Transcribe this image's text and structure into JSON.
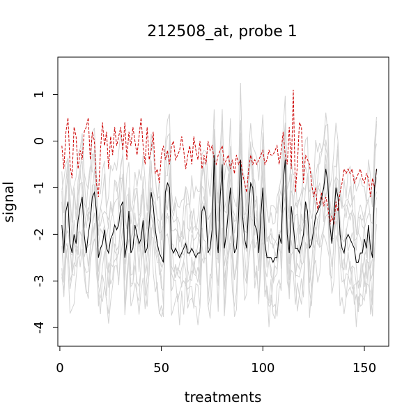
{
  "chart_data": {
    "type": "line",
    "title": "212508_at, probe 1",
    "xlabel": "treatments",
    "ylabel": "signal",
    "xlim": [
      -1,
      162
    ],
    "ylim": [
      -4.4,
      1.8
    ],
    "xticks": [
      0,
      50,
      100,
      150
    ],
    "yticks": [
      -4,
      -3,
      -2,
      -1,
      0,
      1
    ],
    "grid": false,
    "n_points": 156,
    "colors": {
      "background": "#d3d3d3",
      "highlight": "#000000",
      "reference": "#cc0000"
    },
    "series": [
      {
        "role": "highlight",
        "color": "#000000",
        "dash": "solid",
        "values": [
          -1.8,
          -2.4,
          -1.5,
          -1.3,
          -2.2,
          -2.4,
          -2.0,
          -2.2,
          -1.7,
          -1.4,
          -1.2,
          -2.0,
          -2.4,
          -2.0,
          -1.7,
          -1.2,
          -1.1,
          -1.5,
          -2.5,
          -2.3,
          -2.2,
          -1.9,
          -2.3,
          -2.4,
          -2.1,
          -2.0,
          -1.8,
          -1.9,
          -1.8,
          -1.4,
          -1.3,
          -2.5,
          -2.2,
          -1.5,
          -2.4,
          -2.3,
          -1.8,
          -2.0,
          -2.2,
          -2.1,
          -1.7,
          -2.4,
          -2.3,
          -1.8,
          -1.1,
          -1.4,
          -1.9,
          -2.2,
          -2.4,
          -2.5,
          -2.6,
          -1.1,
          -0.9,
          -1.0,
          -2.3,
          -2.4,
          -2.3,
          -2.4,
          -2.5,
          -2.4,
          -2.3,
          -2.2,
          -2.4,
          -2.4,
          -2.3,
          -2.4,
          -2.5,
          -2.4,
          -2.4,
          -1.5,
          -1.4,
          -1.6,
          -2.4,
          -2.3,
          -1.9,
          -0.3,
          -2.0,
          -2.4,
          -1.2,
          -0.5,
          -2.3,
          -2.0,
          -1.5,
          -1.0,
          -1.9,
          -2.4,
          -2.3,
          -1.6,
          -0.4,
          -1.6,
          -2.1,
          -2.3,
          -1.4,
          -0.9,
          -1.0,
          -1.8,
          -1.9,
          -2.4,
          -1.6,
          -1.0,
          -2.2,
          -2.5,
          -2.5,
          -2.5,
          -2.6,
          -2.5,
          -2.5,
          -2.0,
          -2.2,
          -0.9,
          -0.4,
          -2.0,
          -2.4,
          -1.4,
          -1.8,
          -2.3,
          -2.3,
          -2.4,
          -2.2,
          -2.0,
          -1.3,
          -1.5,
          -2.3,
          -2.2,
          -1.9,
          -1.6,
          -1.5,
          -1.4,
          -1.2,
          -1.0,
          -0.6,
          -0.9,
          -1.8,
          -2.2,
          -1.6,
          -1.0,
          -1.2,
          -2.0,
          -2.3,
          -2.4,
          -2.1,
          -2.0,
          -2.1,
          -2.2,
          -2.3,
          -2.6,
          -2.6,
          -2.4,
          -2.4,
          -2.1,
          -2.3,
          -1.8,
          -2.3,
          -2.5,
          -1.0,
          -0.6
        ]
      },
      {
        "role": "reference",
        "color": "#cc0000",
        "dash": "dashed",
        "values": [
          -0.1,
          -0.6,
          0.2,
          0.5,
          -0.5,
          -0.8,
          0.3,
          0.1,
          -0.6,
          -0.2,
          -0.4,
          0.2,
          0.3,
          0.5,
          -0.4,
          0.2,
          0.0,
          -0.9,
          -1.2,
          -0.2,
          0.4,
          -0.1,
          0.2,
          -0.6,
          0.1,
          -0.3,
          0.3,
          -0.1,
          0.1,
          0.3,
          -0.2,
          0.4,
          -0.4,
          0.2,
          -0.1,
          0.3,
          0.0,
          -0.3,
          0.1,
          0.5,
          -0.1,
          -0.5,
          0.3,
          -0.4,
          -0.2,
          0.2,
          -0.7,
          -0.6,
          -0.9,
          -0.3,
          -0.1,
          -0.4,
          -0.2,
          -0.5,
          -0.1,
          0.0,
          -0.4,
          -0.3,
          -0.2,
          0.1,
          -0.2,
          -0.6,
          -0.3,
          -0.1,
          -0.5,
          0.1,
          -0.2,
          -0.4,
          0.0,
          -0.6,
          -0.3,
          -0.5,
          0.0,
          -0.2,
          -0.1,
          -0.4,
          -0.5,
          -0.3,
          -0.2,
          -0.1,
          -0.5,
          -0.4,
          -0.3,
          -0.6,
          -0.4,
          -0.7,
          -0.3,
          -0.5,
          -0.4,
          -0.7,
          -0.9,
          -1.1,
          -0.6,
          -0.3,
          -0.5,
          -0.4,
          -0.5,
          -0.4,
          -0.3,
          -0.2,
          -0.5,
          -0.4,
          -0.2,
          -0.3,
          -0.3,
          -0.2,
          -0.1,
          -0.5,
          -0.2,
          0.2,
          -0.3,
          -0.5,
          0.3,
          -0.6,
          1.1,
          -1.1,
          -0.5,
          0.4,
          0.3,
          -0.9,
          -0.3,
          -0.4,
          -0.5,
          -0.9,
          -1.2,
          -1.0,
          -1.5,
          -1.3,
          -1.1,
          -1.4,
          -1.2,
          -1.4,
          -1.8,
          -1.6,
          -1.8,
          -1.3,
          -1.5,
          -1.1,
          -0.9,
          -0.6,
          -0.7,
          -0.6,
          -0.7,
          -0.6,
          -0.9,
          -0.8,
          -0.7,
          -0.6,
          -0.8,
          -0.9,
          -0.7,
          -0.8,
          -1.2,
          -0.8,
          -1.0,
          -0.6
        ]
      }
    ],
    "background_series_count": 10
  }
}
